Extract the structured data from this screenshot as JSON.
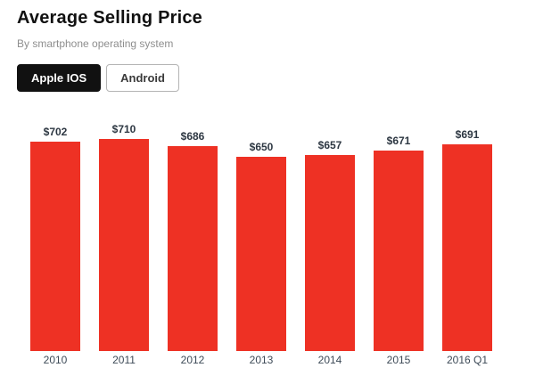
{
  "header": {
    "title": "Average Selling Price",
    "subtitle": "By smartphone operating system"
  },
  "tabs": [
    {
      "label": "Apple IOS",
      "active": true
    },
    {
      "label": "Android",
      "active": false
    }
  ],
  "chart_data": {
    "type": "bar",
    "title": "Average Selling Price",
    "subtitle": "By smartphone operating system",
    "series_name": "Apple IOS",
    "categories": [
      "2010",
      "2011",
      "2012",
      "2013",
      "2014",
      "2015",
      "2016 Q1"
    ],
    "values": [
      702,
      710,
      686,
      650,
      657,
      671,
      691
    ],
    "value_labels": [
      "$702",
      "$710",
      "$686",
      "$650",
      "$657",
      "$671",
      "$691"
    ],
    "currency": "USD",
    "xlabel": "",
    "ylabel": "",
    "ylim": [
      0,
      710
    ],
    "grid": false,
    "legend": "none",
    "bar_color": "#ee3124",
    "value_label_color": "#2d3742",
    "axis_label_color": "#3d4a57"
  }
}
